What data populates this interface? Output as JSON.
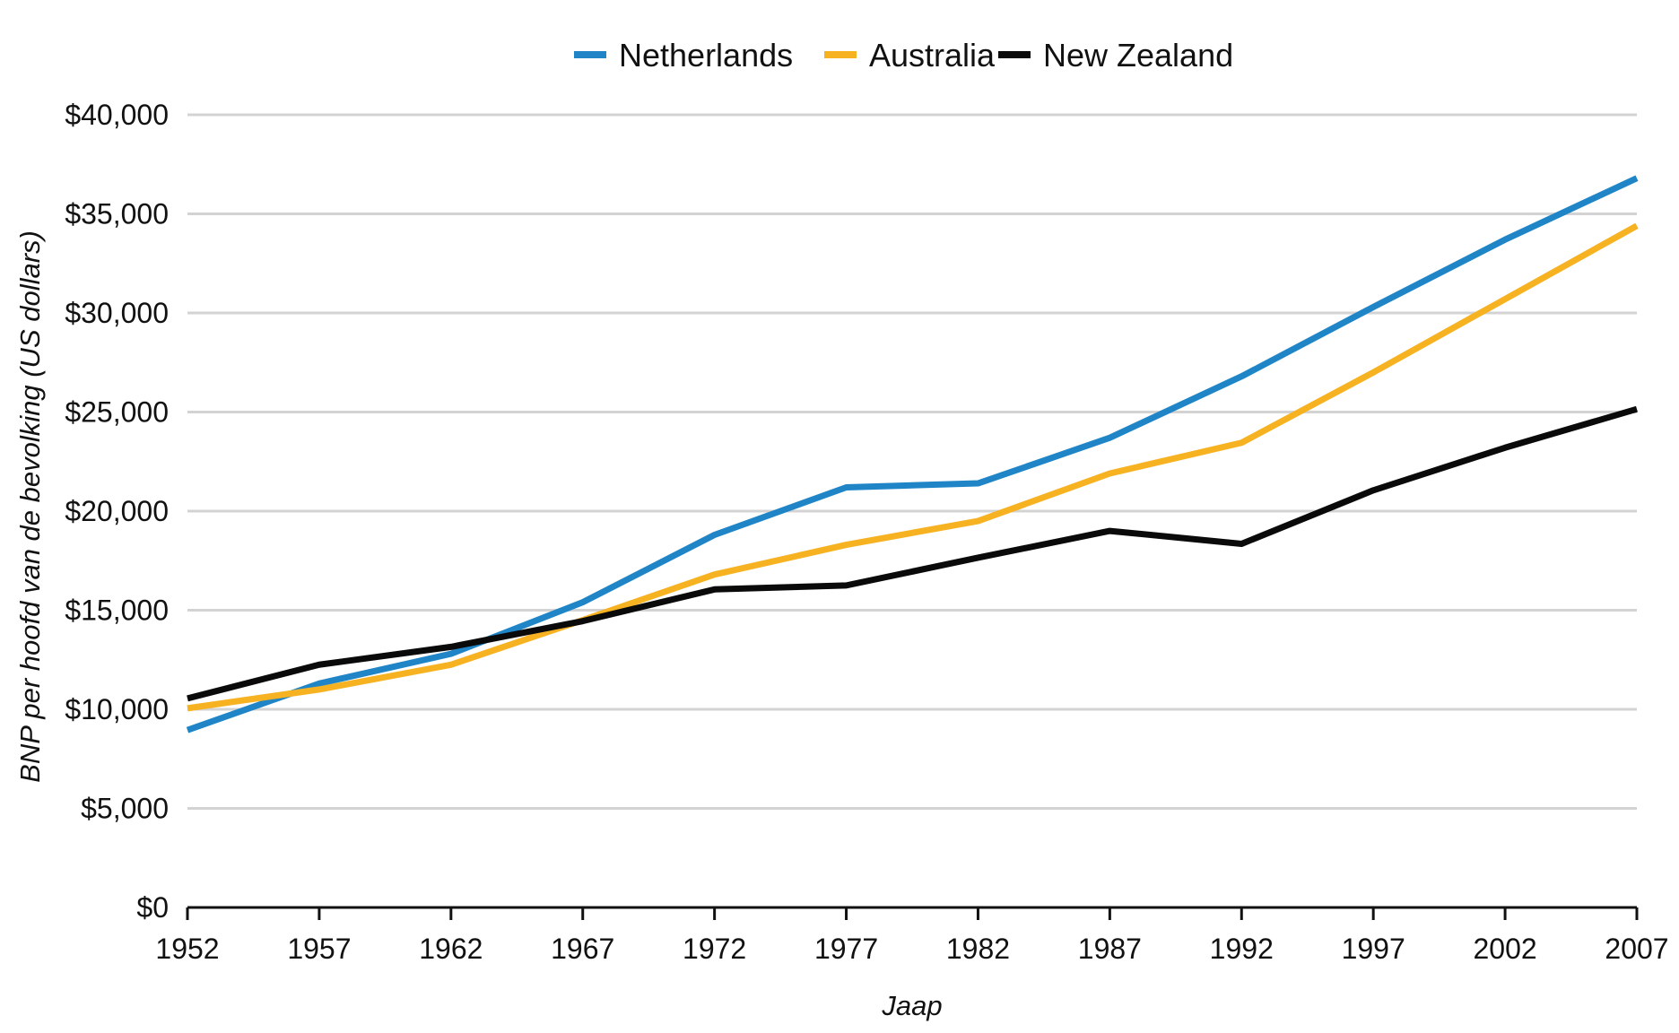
{
  "chart_data": {
    "type": "line",
    "title": "",
    "xlabel": "Jaap",
    "ylabel": "BNP per hoofd van de bevolking (US dollars)",
    "x": [
      1952,
      1957,
      1962,
      1967,
      1972,
      1977,
      1982,
      1987,
      1992,
      1997,
      2002,
      2007
    ],
    "x_tick_labels": [
      "1952",
      "1957",
      "1962",
      "1967",
      "1972",
      "1977",
      "1982",
      "1987",
      "1992",
      "1997",
      "2002",
      "2007"
    ],
    "ylim": [
      0,
      40000
    ],
    "y_ticks": [
      0,
      5000,
      10000,
      15000,
      20000,
      25000,
      30000,
      35000,
      40000
    ],
    "y_tick_labels": [
      "$0",
      "$5,000",
      "$10,000",
      "$15,000",
      "$20,000",
      "$25,000",
      "$30,000",
      "$35,000",
      "$40,000"
    ],
    "grid": true,
    "legend_position": "top-center",
    "series": [
      {
        "name": "Netherlands",
        "color": "#1f85c7",
        "values": [
          8950,
          11300,
          12800,
          15400,
          18800,
          21200,
          21400,
          23700,
          26800,
          30300,
          33700,
          36800
        ]
      },
      {
        "name": "Australia",
        "color": "#f6b221",
        "values": [
          10050,
          11000,
          12250,
          14500,
          16800,
          18300,
          19500,
          21900,
          23450,
          27000,
          30700,
          34400
        ]
      },
      {
        "name": "New Zealand",
        "color": "#0a0a0a",
        "values": [
          10550,
          12250,
          13150,
          14450,
          16050,
          16250,
          17650,
          19000,
          18350,
          21050,
          23200,
          25150
        ]
      }
    ]
  }
}
